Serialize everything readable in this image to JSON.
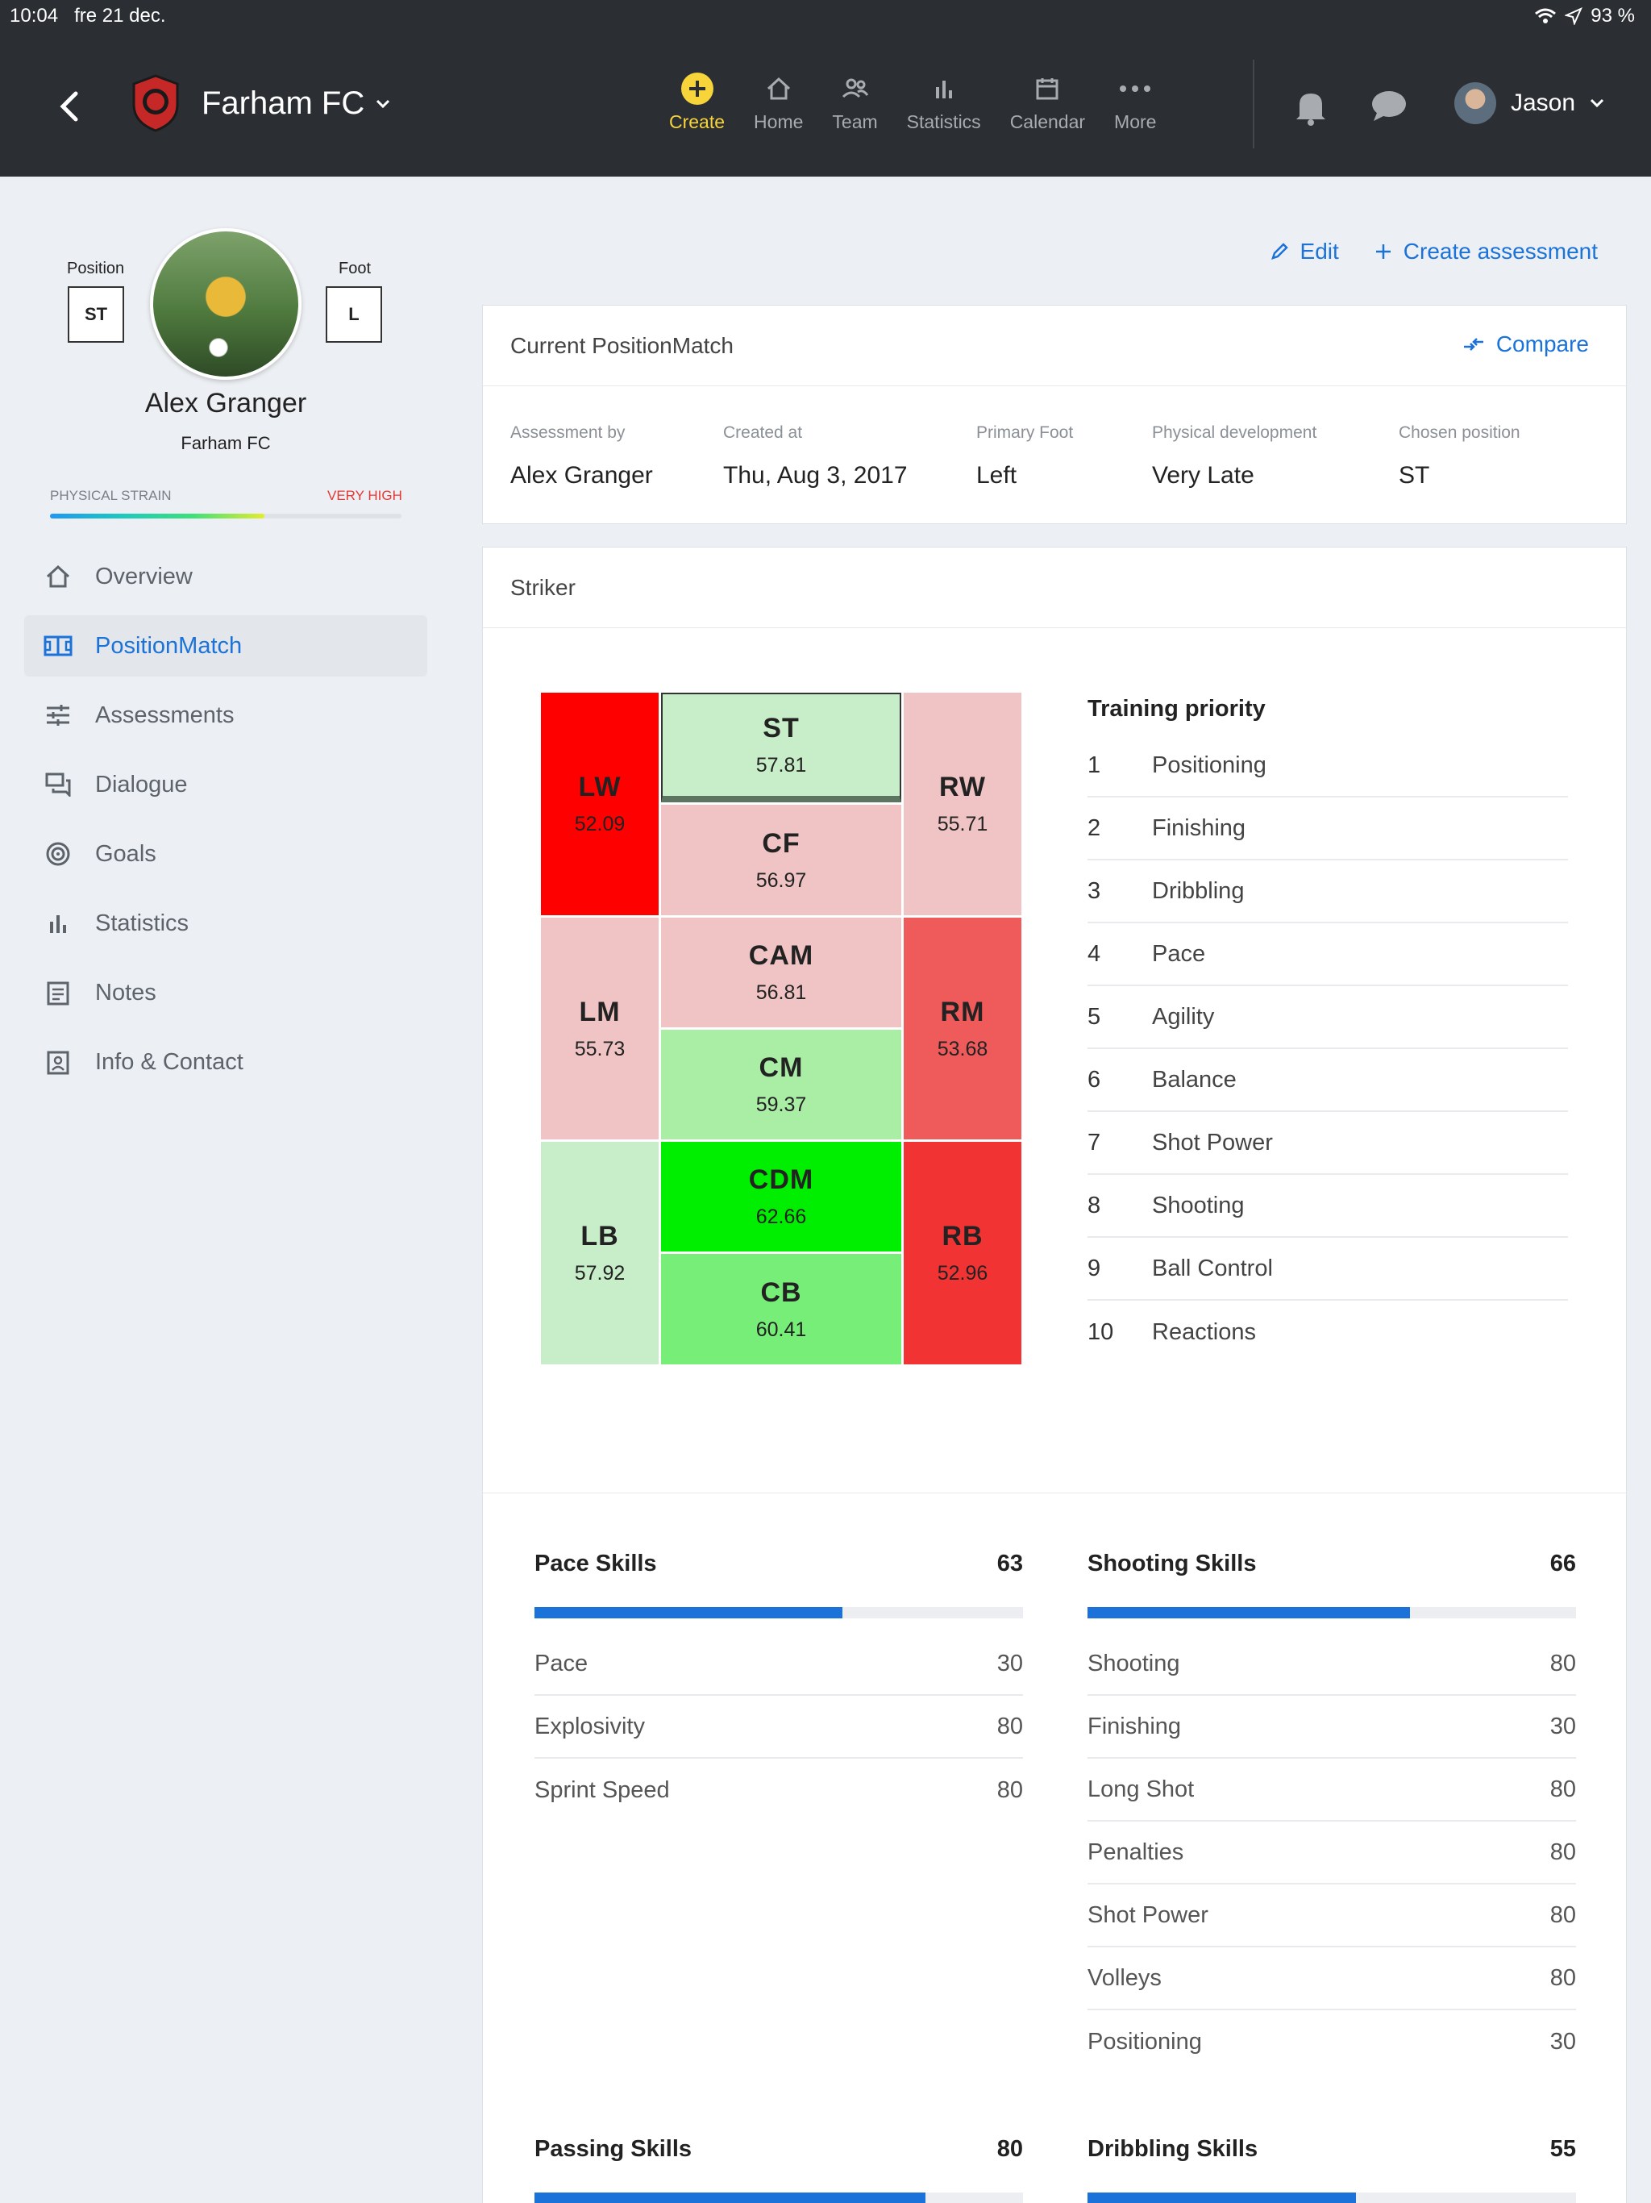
{
  "status": {
    "time": "10:04",
    "date": "fre 21 dec.",
    "battery": "93 %"
  },
  "header": {
    "team_name": "Farham FC",
    "nav": [
      {
        "label": "Create",
        "icon": "plus-circle-icon"
      },
      {
        "label": "Home",
        "icon": "home-icon"
      },
      {
        "label": "Team",
        "icon": "team-icon"
      },
      {
        "label": "Statistics",
        "icon": "bar-chart-icon"
      },
      {
        "label": "Calendar",
        "icon": "calendar-icon"
      },
      {
        "label": "More",
        "icon": "more-icon"
      }
    ],
    "user_name": "Jason"
  },
  "profile": {
    "position_label": "Position",
    "position": "ST",
    "foot_label": "Foot",
    "foot": "L",
    "name": "Alex Granger",
    "team": "Farham FC",
    "strain_label": "PHYSICAL STRAIN",
    "strain_value": "VERY HIGH",
    "strain_level": 0.61
  },
  "sidebar": {
    "items": [
      {
        "label": "Overview",
        "icon": "home-icon"
      },
      {
        "label": "PositionMatch",
        "icon": "pitch-icon"
      },
      {
        "label": "Assessments",
        "icon": "sliders-icon"
      },
      {
        "label": "Dialogue",
        "icon": "dialogue-icon"
      },
      {
        "label": "Goals",
        "icon": "target-icon"
      },
      {
        "label": "Statistics",
        "icon": "bar-chart-icon"
      },
      {
        "label": "Notes",
        "icon": "notes-icon"
      },
      {
        "label": "Info & Contact",
        "icon": "contact-icon"
      }
    ]
  },
  "actions": {
    "edit": "Edit",
    "create_assessment": "Create assessment"
  },
  "current": {
    "title": "Current PositionMatch",
    "compare": "Compare",
    "fields": [
      {
        "label": "Assessment by",
        "value": "Alex Granger"
      },
      {
        "label": "Created at",
        "value": "Thu, Aug 3, 2017"
      },
      {
        "label": "Primary Foot",
        "value": "Left"
      },
      {
        "label": "Physical development",
        "value": "Very Late"
      },
      {
        "label": "Chosen position",
        "value": "ST"
      }
    ]
  },
  "striker": {
    "title": "Striker",
    "positions": {
      "LW": {
        "code": "LW",
        "value": "52.09",
        "color": "#ff0000"
      },
      "ST": {
        "code": "ST",
        "value": "57.81",
        "color": "#c8eec9"
      },
      "CF": {
        "code": "CF",
        "value": "56.97",
        "color": "#f0c4c4"
      },
      "RW": {
        "code": "RW",
        "value": "55.71",
        "color": "#f0c4c4"
      },
      "LM": {
        "code": "LM",
        "value": "55.73",
        "color": "#f0c4c4"
      },
      "CAM": {
        "code": "CAM",
        "value": "56.81",
        "color": "#f0c4c4"
      },
      "CM": {
        "code": "CM",
        "value": "59.37",
        "color": "#aaeea6"
      },
      "RM": {
        "code": "RM",
        "value": "53.68",
        "color": "#ef5a5a"
      },
      "LB": {
        "code": "LB",
        "value": "57.92",
        "color": "#c8eec9"
      },
      "CDM": {
        "code": "CDM",
        "value": "62.66",
        "color": "#00ee00"
      },
      "CB": {
        "code": "CB",
        "value": "60.41",
        "color": "#77ee77"
      },
      "RB": {
        "code": "RB",
        "value": "52.96",
        "color": "#f23333"
      }
    },
    "priority_title": "Training priority",
    "priority": [
      {
        "num": "1",
        "label": "Positioning"
      },
      {
        "num": "2",
        "label": "Finishing"
      },
      {
        "num": "3",
        "label": "Dribbling"
      },
      {
        "num": "4",
        "label": "Pace"
      },
      {
        "num": "5",
        "label": "Agility"
      },
      {
        "num": "6",
        "label": "Balance"
      },
      {
        "num": "7",
        "label": "Shot Power"
      },
      {
        "num": "8",
        "label": "Shooting"
      },
      {
        "num": "9",
        "label": "Ball Control"
      },
      {
        "num": "10",
        "label": "Reactions"
      }
    ]
  },
  "skills": {
    "pace": {
      "title": "Pace Skills",
      "score": "63",
      "level": 0.63,
      "rows": [
        {
          "label": "Pace",
          "value": "30"
        },
        {
          "label": "Explosivity",
          "value": "80"
        },
        {
          "label": "Sprint Speed",
          "value": "80"
        }
      ]
    },
    "shooting": {
      "title": "Shooting Skills",
      "score": "66",
      "level": 0.66,
      "rows": [
        {
          "label": "Shooting",
          "value": "80"
        },
        {
          "label": "Finishing",
          "value": "30"
        },
        {
          "label": "Long Shot",
          "value": "80"
        },
        {
          "label": "Penalties",
          "value": "80"
        },
        {
          "label": "Shot Power",
          "value": "80"
        },
        {
          "label": "Volleys",
          "value": "80"
        },
        {
          "label": "Positioning",
          "value": "30"
        }
      ]
    },
    "passing": {
      "title": "Passing Skills",
      "score": "80",
      "level": 0.8
    },
    "dribbling": {
      "title": "Dribbling Skills",
      "score": "55",
      "level": 0.55
    }
  },
  "colors": {
    "accent": "#1b72d8",
    "create": "#f7d43a",
    "header_bg": "#2b2e33",
    "strain_value": "#e53935"
  }
}
